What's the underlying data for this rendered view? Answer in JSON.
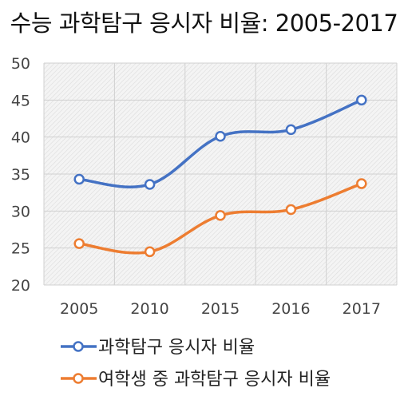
{
  "chart_data": {
    "type": "line",
    "title": "수능 과학탐구 응시자 비율: 2005-2017",
    "xlabel": "",
    "ylabel": "",
    "categories": [
      "2005",
      "2010",
      "2015",
      "2016",
      "2017"
    ],
    "ylim": [
      20,
      50
    ],
    "yticks": [
      "20",
      "25",
      "30",
      "35",
      "40",
      "45",
      "50"
    ],
    "grid": true,
    "legend_position": "bottom",
    "series": [
      {
        "name": "과학탐구 응시자 비율",
        "color": "#4472C4",
        "values": [
          34.3,
          33.6,
          40.1,
          41.0,
          45.0
        ]
      },
      {
        "name": "여학생 중 과학탐구 응시자 비율",
        "color": "#ED7D31",
        "values": [
          25.6,
          24.5,
          29.4,
          30.2,
          33.7
        ]
      }
    ]
  }
}
